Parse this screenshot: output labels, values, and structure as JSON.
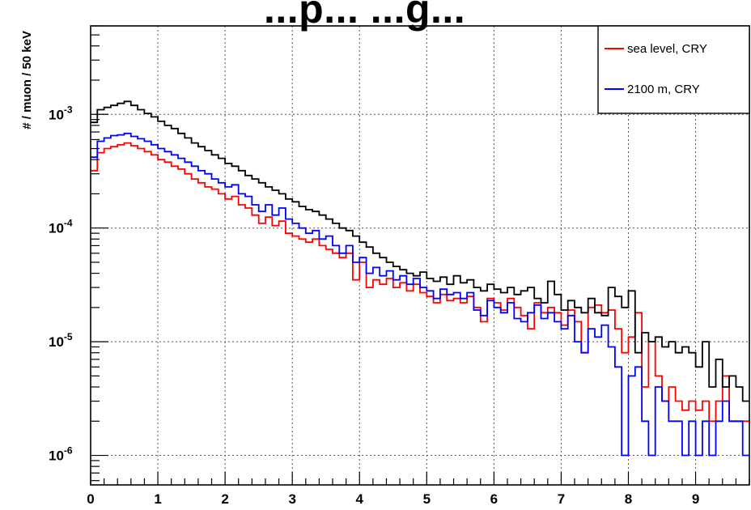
{
  "title_fragment": "...p... ...g...",
  "chart_data": {
    "type": "line",
    "step": true,
    "title": "",
    "xlabel": "",
    "ylabel": "# / muon / 50 keV",
    "xlim": [
      0,
      9.8
    ],
    "ylim": [
      5.5e-07,
      0.006
    ],
    "yscale": "log",
    "grid": true,
    "bin_width": 0.1,
    "x_ticks": [
      "0",
      "1",
      "2",
      "3",
      "4",
      "5",
      "6",
      "7",
      "8",
      "9"
    ],
    "y_ticks": [
      {
        "value": 1e-06,
        "base": "10",
        "exp": "-6"
      },
      {
        "value": 1e-05,
        "base": "10",
        "exp": "-5"
      },
      {
        "value": 0.0001,
        "base": "10",
        "exp": "-4"
      },
      {
        "value": 0.001,
        "base": "10",
        "exp": "-3"
      }
    ],
    "legend": {
      "position": "top-right"
    },
    "series": [
      {
        "name": "sea level, CRY",
        "color": "#ff0000",
        "values": [
          0.00032,
          0.00046,
          0.0005,
          0.00052,
          0.00054,
          0.00056,
          0.00053,
          0.0005,
          0.00047,
          0.00044,
          0.0004,
          0.00038,
          0.00035,
          0.00033,
          0.0003,
          0.00027,
          0.00025,
          0.00023,
          0.00022,
          0.0002,
          0.00018,
          0.00019,
          0.00016,
          0.00015,
          0.00013,
          0.00011,
          0.000125,
          0.000105,
          0.000115,
          9e-05,
          8.5e-05,
          8e-05,
          7.5e-05,
          8e-05,
          7e-05,
          6.5e-05,
          6e-05,
          5.5e-05,
          6e-05,
          3.5e-05,
          5e-05,
          3e-05,
          3.5e-05,
          3.2e-05,
          3.6e-05,
          3e-05,
          3.3e-05,
          2.8e-05,
          3.2e-05,
          2.7e-05,
          2.5e-05,
          2.2e-05,
          2.6e-05,
          2.3e-05,
          2.4e-05,
          2.2e-05,
          2.5e-05,
          2e-05,
          1.5e-05,
          2.4e-05,
          2.2e-05,
          1.9e-05,
          2.4e-05,
          2e-05,
          1.7e-05,
          1.3e-05,
          2.2e-05,
          1.8e-05,
          2e-05,
          1.8e-05,
          1.4e-05,
          1.9e-05,
          1.5e-05,
          8e-06,
          2e-05,
          2.1e-05,
          1.8e-05,
          1.9e-05,
          1.3e-05,
          8e-06,
          1.1e-05,
          1.8e-05,
          4e-06,
          1e-05,
          5e-06,
          3e-06,
          4e-06,
          3e-06,
          2.5e-06,
          3e-06,
          2.5e-06,
          3e-06,
          2e-06,
          3e-06,
          5e-06,
          2e-06,
          2e-06,
          2e-06
        ]
      },
      {
        "name": "2100 m, CRY",
        "color": "#0000ff",
        "values": [
          0.00042,
          0.00058,
          0.00062,
          0.00065,
          0.00066,
          0.00068,
          0.00064,
          0.00061,
          0.00058,
          0.00054,
          0.0005,
          0.00047,
          0.00044,
          0.00041,
          0.00038,
          0.00035,
          0.00032,
          0.0003,
          0.00027,
          0.00025,
          0.00023,
          0.00024,
          0.0002,
          0.00019,
          0.00016,
          0.00014,
          0.00016,
          0.00013,
          0.00015,
          0.00012,
          0.00011,
          0.0001,
          9e-05,
          9.5e-05,
          8e-05,
          8.5e-05,
          7e-05,
          6e-05,
          7e-05,
          5e-05,
          5.5e-05,
          4e-05,
          4.5e-05,
          3.8e-05,
          4.2e-05,
          3.5e-05,
          3.8e-05,
          3.2e-05,
          3.6e-05,
          3e-05,
          2.8e-05,
          2.4e-05,
          2.9e-05,
          2.6e-05,
          2.7e-05,
          2.4e-05,
          2.7e-05,
          1.9e-05,
          1.7e-05,
          2.3e-05,
          2e-05,
          1.8e-05,
          2.2e-05,
          1.6e-05,
          1.5e-05,
          1.8e-05,
          2.1e-05,
          1.6e-05,
          1.8e-05,
          1.5e-05,
          1.3e-05,
          1.7e-05,
          1e-05,
          8e-06,
          1.3e-05,
          1.1e-05,
          1.4e-05,
          9e-06,
          6e-06,
          1e-06,
          5e-06,
          6e-06,
          2e-06,
          1e-06,
          4e-06,
          3e-06,
          2e-06,
          2e-06,
          1e-06,
          2e-06,
          1e-06,
          2e-06,
          1e-06,
          2e-06,
          3e-06,
          2e-06,
          2e-06,
          1e-06
        ]
      },
      {
        "name": "",
        "color": "#000000",
        "values": [
          0.00085,
          0.0011,
          0.00115,
          0.0012,
          0.00125,
          0.0013,
          0.0012,
          0.0011,
          0.00102,
          0.00095,
          0.00087,
          0.0008,
          0.00075,
          0.00068,
          0.00062,
          0.00056,
          0.00052,
          0.00048,
          0.00044,
          0.00041,
          0.00037,
          0.00035,
          0.00032,
          0.00029,
          0.00027,
          0.00025,
          0.00023,
          0.000215,
          0.0002,
          0.00018,
          0.00017,
          0.000155,
          0.000145,
          0.00014,
          0.00013,
          0.00012,
          0.00011,
          0.0001,
          9.5e-05,
          8.5e-05,
          7.5e-05,
          6.8e-05,
          6e-05,
          5.5e-05,
          5e-05,
          4.6e-05,
          4.3e-05,
          4e-05,
          3.8e-05,
          4.1e-05,
          3.6e-05,
          3.4e-05,
          3.7e-05,
          3.2e-05,
          3.8e-05,
          3.3e-05,
          3.5e-05,
          3e-05,
          2.8e-05,
          3.2e-05,
          2.9e-05,
          2.7e-05,
          3e-05,
          2.6e-05,
          2.8e-05,
          3e-05,
          2.4e-05,
          2.2e-05,
          3.4e-05,
          2.6e-05,
          1.9e-05,
          2.3e-05,
          2e-05,
          1.8e-05,
          2.4e-05,
          1.8e-05,
          1.7e-05,
          3e-05,
          2.5e-05,
          2e-05,
          2.8e-05,
          8e-06,
          1.2e-05,
          1e-05,
          1.1e-05,
          9e-06,
          1e-05,
          8e-06,
          9e-06,
          8e-06,
          6e-06,
          1e-05,
          4e-06,
          7e-06,
          4e-06,
          5e-06,
          4e-06,
          3e-06
        ]
      }
    ]
  }
}
